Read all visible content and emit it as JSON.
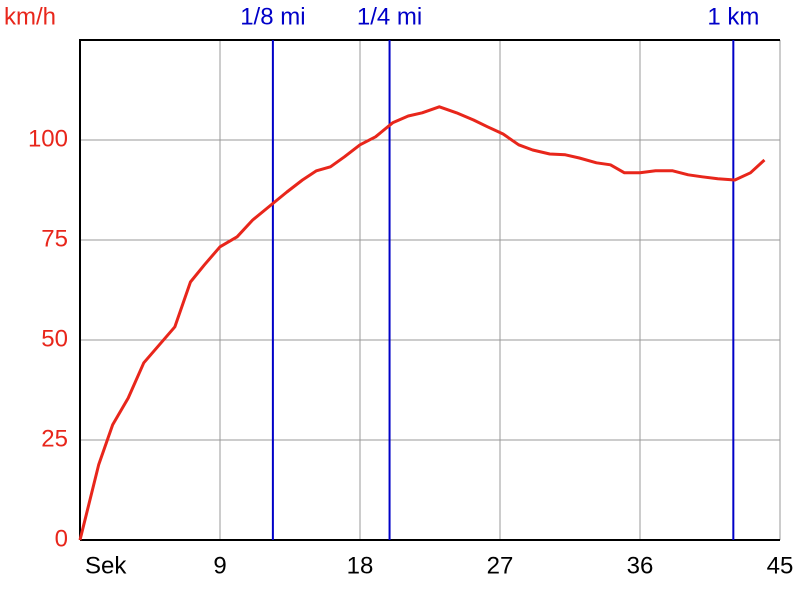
{
  "chart_data": {
    "type": "line",
    "x_label": "Sek",
    "y_label": "km/h",
    "x": [
      0,
      1.2,
      2.1,
      3.1,
      4.1,
      5.1,
      6.1,
      7.1,
      8.0,
      9.0,
      10.1,
      11.1,
      12.2,
      13.3,
      14.3,
      15.2,
      16.1,
      17.0,
      18.0,
      19.0,
      20.1,
      21.1,
      22.0,
      23.1,
      24.2,
      25.3,
      26.2,
      27.2,
      28.2,
      29.1,
      30.2,
      31.2,
      32.1,
      33.2,
      34.1,
      35.0,
      36.0,
      37.0,
      38.1,
      39.1,
      40.0,
      41.0,
      42.1,
      43.1,
      44.0
    ],
    "series": [
      {
        "color": "#e8261b",
        "values": [
          0,
          18.8,
          28.8,
          35.5,
          44.3,
          48.8,
          53.3,
          64.5,
          68.8,
          73.3,
          75.8,
          80,
          83.5,
          87,
          90,
          92.3,
          93.3,
          95.8,
          98.8,
          100.8,
          104.3,
          106,
          106.8,
          108.3,
          106.8,
          105,
          103.3,
          101.5,
          98.8,
          97.5,
          96.5,
          96.3,
          95.5,
          94.3,
          93.8,
          91.8,
          91.8,
          92.3,
          92.3,
          91.3,
          90.8,
          90.3,
          90,
          91.8,
          95
        ]
      }
    ],
    "markers": [
      {
        "label": "1/8 mi",
        "x": 12.4
      },
      {
        "label": "1/4 mi",
        "x": 19.9
      },
      {
        "label": "1 km",
        "x": 42.0
      }
    ],
    "marker_color": "#0000c8",
    "xlim": [
      0,
      45
    ],
    "xticks": [
      9,
      18,
      27,
      36,
      45
    ],
    "ylim": [
      0,
      125
    ],
    "yticks": [
      0,
      25,
      50,
      75,
      100
    ],
    "grid": true
  }
}
